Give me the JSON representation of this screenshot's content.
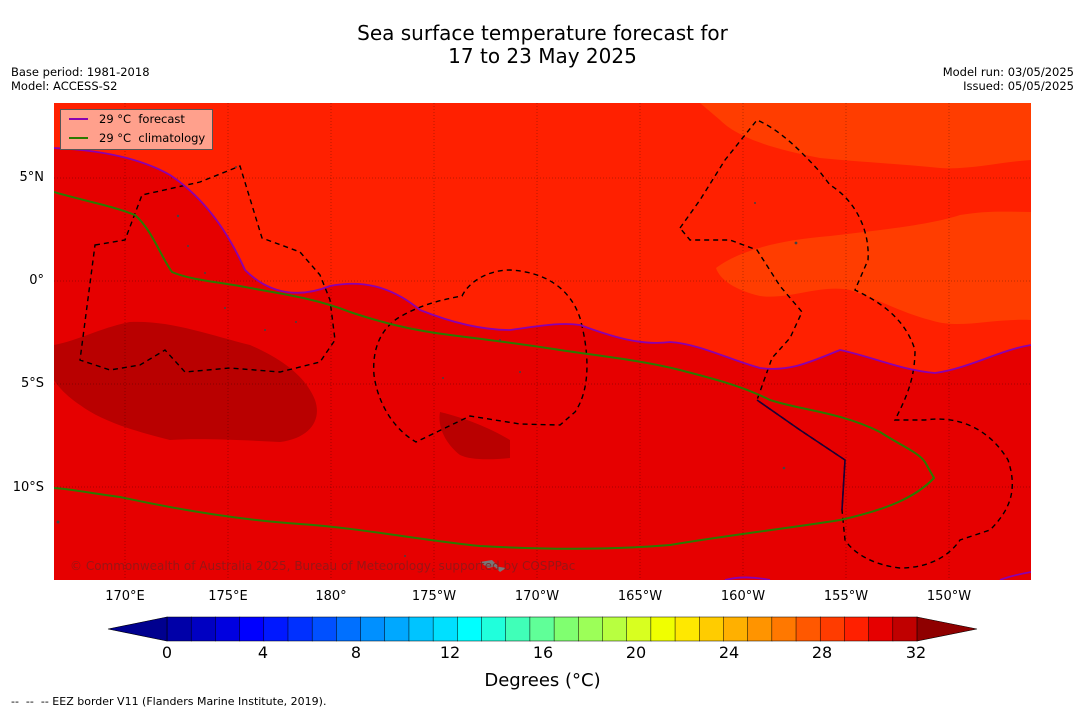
{
  "title": {
    "line1": "Sea surface temperature forecast for",
    "line2": "17 to 23 May 2025"
  },
  "meta": {
    "base_period": "Base period: 1981-2018",
    "model": "Model: ACCESS-S2",
    "model_run": "Model run: 03/05/2025",
    "issued": "Issued: 05/05/2025"
  },
  "map": {
    "lat_ticks": [
      "5°N",
      "0°",
      "5°S",
      "10°S"
    ],
    "lon_ticks": [
      "170°E",
      "175°E",
      "180°",
      "175°W",
      "170°W",
      "165°W",
      "160°W",
      "155°W",
      "150°W"
    ],
    "extent": {
      "lon_min": 166.5,
      "lon_max": 213.8,
      "lat_min": -14.5,
      "lat_max": 8.6
    },
    "colors": {
      "band_28_29": "#ff2000",
      "band_29_30": "#e60000",
      "band_30_31": "#b90000",
      "band_27_28": "#ff3d00",
      "forecast_line": "#8a00b0",
      "climatology_line": "#2b7a00"
    }
  },
  "legend": {
    "items": [
      {
        "label": "29 °C  forecast",
        "color": "#8a00b0"
      },
      {
        "label": "29 °C  climatology",
        "color": "#2b7a00"
      }
    ]
  },
  "copyright": "© Commonwealth of Australia 2025, Bureau of Meteorology, supported by COSPPac",
  "colorbar": {
    "ticks": [
      "0",
      "4",
      "8",
      "12",
      "16",
      "20",
      "24",
      "28",
      "32"
    ],
    "label": "Degrees (°C)",
    "colors": [
      "#00008f",
      "#0000a8",
      "#0000c2",
      "#0000e0",
      "#0000ff",
      "#0018ff",
      "#0030ff",
      "#0050ff",
      "#0070ff",
      "#0090ff",
      "#00a8ff",
      "#00c4ff",
      "#00e0ff",
      "#00ffff",
      "#20ffdc",
      "#40ffb8",
      "#60ff98",
      "#80ff70",
      "#9cff58",
      "#b8ff40",
      "#d8ff20",
      "#f0ff00",
      "#ffe800",
      "#ffcc00",
      "#ffb000",
      "#ff9400",
      "#ff7800",
      "#ff5800",
      "#ff3c00",
      "#ff2000",
      "#e60000",
      "#c00000",
      "#8f0000"
    ]
  },
  "footer": "--  --  -- EEZ border V11 (Flanders Marine Institute, 2019)."
}
